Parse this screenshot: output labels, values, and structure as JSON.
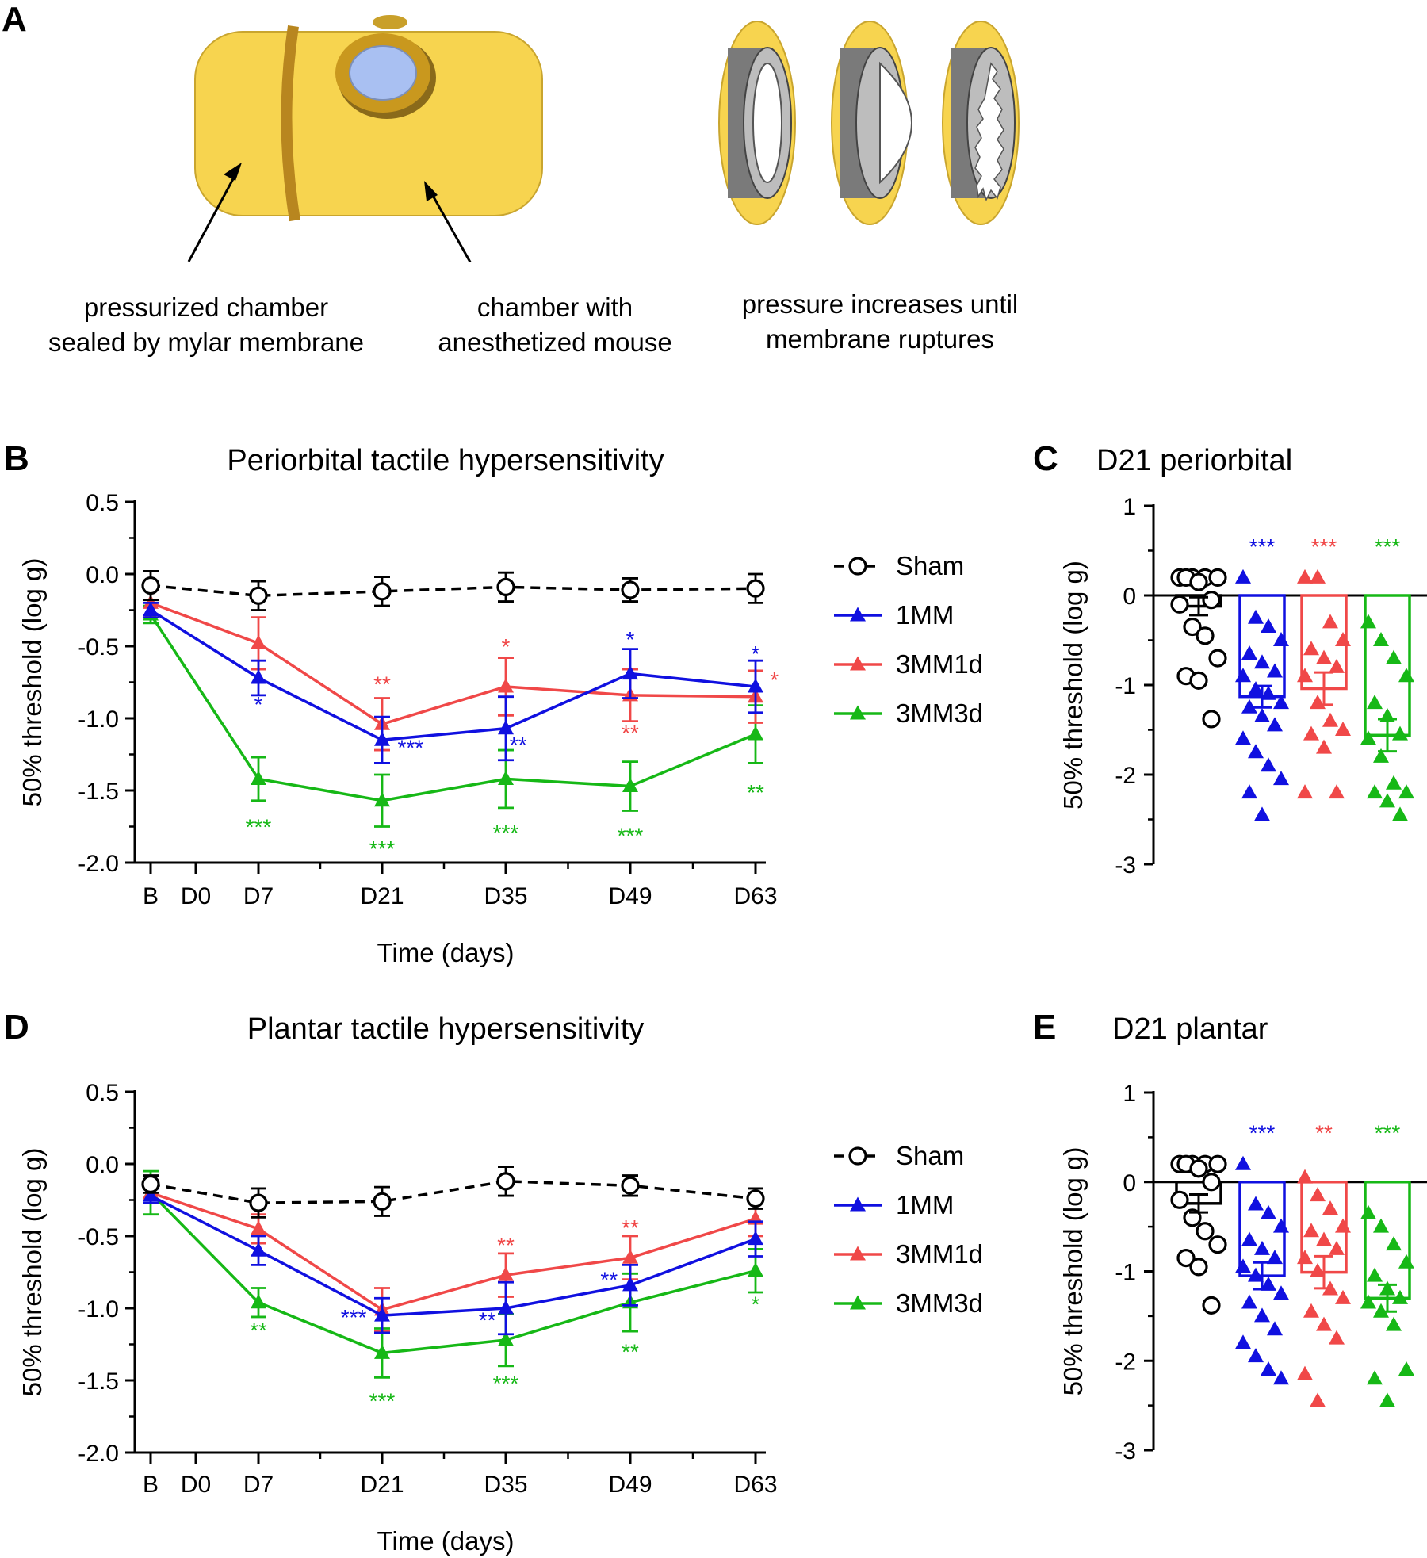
{
  "panel_a": {
    "letter": "A",
    "caption_left": [
      "pressurized chamber",
      "sealed by mylar membrane"
    ],
    "caption_mid": [
      "chamber with",
      "anesthetized mouse"
    ],
    "caption_right": [
      "pressure increases until",
      "membrane ruptures"
    ],
    "colors": {
      "chamber": "#F7D44F",
      "band": "#B8861F",
      "window": "#A9C0F2"
    }
  },
  "colors": {
    "Sham": "#000000",
    "1MM": "#1010E0",
    "3MM1d": "#F04848",
    "3MM3d": "#16B816"
  },
  "chart_data": [
    {
      "id": "B",
      "type": "line",
      "title": "Periorbital tactile hypersensitivity",
      "xlabel": "Time (days)",
      "ylabel": "50% threshold (log g)",
      "categories": [
        "B",
        "D0",
        "D7",
        "D21",
        "D35",
        "D49",
        "D63"
      ],
      "x": [
        0,
        1,
        2,
        3,
        4,
        5,
        6
      ],
      "ylim": [
        -2.0,
        0.5
      ],
      "yticks": [
        "0.5",
        "0.0",
        "-0.5",
        "-1.0",
        "-1.5",
        "-2.0"
      ],
      "ytick_values": [
        0.5,
        0.0,
        -0.5,
        -1.0,
        -1.5,
        -2.0
      ],
      "legend_position": "right",
      "series": [
        {
          "name": "Sham",
          "x": [
            0,
            2,
            3,
            4,
            5,
            6
          ],
          "values": [
            -0.08,
            -0.15,
            -0.12,
            -0.09,
            -0.11,
            -0.1
          ],
          "err": [
            0.1,
            0.1,
            0.1,
            0.1,
            0.08,
            0.1
          ]
        },
        {
          "name": "1MM",
          "x": [
            0,
            2,
            3,
            4,
            5,
            6
          ],
          "values": [
            -0.25,
            -0.72,
            -1.15,
            -1.07,
            -0.69,
            -0.78
          ],
          "err": [
            0.05,
            0.12,
            0.16,
            0.22,
            0.17,
            0.18
          ]
        },
        {
          "name": "3MM1d",
          "x": [
            0,
            2,
            3,
            4,
            5,
            6
          ],
          "values": [
            -0.2,
            -0.48,
            -1.04,
            -0.78,
            -0.84,
            -0.85
          ],
          "err": [
            0.1,
            0.18,
            0.18,
            0.2,
            0.18,
            0.18
          ]
        },
        {
          "name": "3MM3d",
          "x": [
            0,
            2,
            3,
            4,
            5,
            6
          ],
          "values": [
            -0.28,
            -1.42,
            -1.57,
            -1.42,
            -1.47,
            -1.11
          ],
          "err": [
            0.06,
            0.15,
            0.18,
            0.2,
            0.17,
            0.2
          ]
        }
      ],
      "annotations": [
        {
          "text": "*",
          "series": "1MM",
          "x": 2,
          "y": -0.9
        },
        {
          "text": "***",
          "series": "3MM3d",
          "x": 2,
          "y": -1.75
        },
        {
          "text": "**",
          "series": "3MM1d",
          "x": 3,
          "y": -0.76
        },
        {
          "text": "***",
          "series": "1MM",
          "x": 3.23,
          "y": -1.2
        },
        {
          "text": "***",
          "series": "3MM3d",
          "x": 3,
          "y": -1.9
        },
        {
          "text": "*",
          "series": "3MM1d",
          "x": 4,
          "y": -0.5
        },
        {
          "text": "**",
          "series": "1MM",
          "x": 4.1,
          "y": -1.18
        },
        {
          "text": "***",
          "series": "3MM3d",
          "x": 4,
          "y": -1.79
        },
        {
          "text": "*",
          "series": "1MM",
          "x": 5,
          "y": -0.45
        },
        {
          "text": "**",
          "series": "3MM1d",
          "x": 5,
          "y": -1.1
        },
        {
          "text": "***",
          "series": "3MM3d",
          "x": 5,
          "y": -1.81
        },
        {
          "text": "*",
          "series": "1MM",
          "x": 6,
          "y": -0.55
        },
        {
          "text": "*",
          "series": "3MM1d",
          "x": 6.15,
          "y": -0.73
        },
        {
          "text": "**",
          "series": "3MM3d",
          "x": 6,
          "y": -1.51
        }
      ]
    },
    {
      "id": "C",
      "type": "bar",
      "title": "D21 periorbital",
      "ylabel": "50% threshold (log g)",
      "categories": [
        "Sham",
        "1MM",
        "3MM1d",
        "3MM3d"
      ],
      "ylim": [
        -3,
        1
      ],
      "yticks": [
        "1",
        "0",
        "-1",
        "-2",
        "-3"
      ],
      "ytick_values": [
        1,
        0,
        -1,
        -2,
        -3
      ],
      "values": [
        -0.12,
        -1.13,
        -1.04,
        -1.56
      ],
      "err": [
        0.1,
        0.12,
        0.18,
        0.18
      ],
      "significance": [
        "",
        "***",
        "***",
        "***"
      ],
      "points": [
        [
          0.2,
          0.2,
          0.2,
          0.2,
          0.2,
          0.15,
          -0.05,
          -0.1,
          -0.35,
          -0.45,
          -0.7,
          -0.9,
          -0.95,
          -1.38
        ],
        [
          0.2,
          -0.25,
          -0.35,
          -0.5,
          -0.65,
          -0.75,
          -0.85,
          -0.9,
          -1.05,
          -1.1,
          -1.2,
          -1.25,
          -1.35,
          -1.45,
          -1.6,
          -1.75,
          -1.9,
          -2.05,
          -2.2,
          -2.45
        ],
        [
          0.2,
          0.2,
          -0.3,
          -0.5,
          -0.6,
          -0.7,
          -0.8,
          -0.9,
          -1.2,
          -1.4,
          -1.5,
          -1.55,
          -1.7,
          -2.2,
          -2.2
        ],
        [
          -0.3,
          -0.5,
          -0.7,
          -0.9,
          -1.2,
          -1.35,
          -1.55,
          -1.6,
          -1.8,
          -2.1,
          -2.2,
          -2.2,
          -2.3,
          -2.45
        ]
      ]
    },
    {
      "id": "D",
      "type": "line",
      "title": "Plantar tactile hypersensitivity",
      "xlabel": "Time (days)",
      "ylabel": "50% threshold (log g)",
      "categories": [
        "B",
        "D0",
        "D7",
        "D21",
        "D35",
        "D49",
        "D63"
      ],
      "x": [
        0,
        1,
        2,
        3,
        4,
        5,
        6
      ],
      "ylim": [
        -2.0,
        0.5
      ],
      "yticks": [
        "0.5",
        "0.0",
        "-0.5",
        "-1.0",
        "-1.5",
        "-2.0"
      ],
      "ytick_values": [
        0.5,
        0.0,
        -0.5,
        -1.0,
        -1.5,
        -2.0
      ],
      "legend_position": "right",
      "series": [
        {
          "name": "Sham",
          "x": [
            0,
            2,
            3,
            4,
            5,
            6
          ],
          "values": [
            -0.14,
            -0.27,
            -0.26,
            -0.12,
            -0.15,
            -0.24
          ],
          "err": [
            0.06,
            0.1,
            0.1,
            0.1,
            0.07,
            0.07
          ]
        },
        {
          "name": "1MM",
          "x": [
            0,
            2,
            3,
            4,
            5,
            6
          ],
          "values": [
            -0.22,
            -0.6,
            -1.05,
            -1.0,
            -0.84,
            -0.52
          ],
          "err": [
            0.05,
            0.1,
            0.12,
            0.18,
            0.14,
            0.12
          ]
        },
        {
          "name": "3MM1d",
          "x": [
            0,
            2,
            3,
            4,
            5,
            6
          ],
          "values": [
            -0.2,
            -0.45,
            -1.01,
            -0.77,
            -0.65,
            -0.38
          ],
          "err": [
            0.05,
            0.1,
            0.15,
            0.15,
            0.15,
            0.12
          ]
        },
        {
          "name": "3MM3d",
          "x": [
            0,
            2,
            3,
            4,
            5,
            6
          ],
          "values": [
            -0.2,
            -0.96,
            -1.31,
            -1.22,
            -0.96,
            -0.74
          ],
          "err": [
            0.15,
            0.1,
            0.17,
            0.18,
            0.2,
            0.15
          ]
        }
      ],
      "annotations": [
        {
          "text": "**",
          "series": "3MM3d",
          "x": 2,
          "y": -1.15
        },
        {
          "text": "***",
          "series": "1MM",
          "x": 2.77,
          "y": -1.06
        },
        {
          "text": "***",
          "series": "3MM3d",
          "x": 3,
          "y": -1.64
        },
        {
          "text": "**",
          "series": "3MM1d",
          "x": 4,
          "y": -0.56
        },
        {
          "text": "**",
          "series": "1MM",
          "x": 3.85,
          "y": -1.08
        },
        {
          "text": "***",
          "series": "3MM3d",
          "x": 4,
          "y": -1.52
        },
        {
          "text": "**",
          "series": "3MM1d",
          "x": 5,
          "y": -0.44
        },
        {
          "text": "**",
          "series": "1MM",
          "x": 4.83,
          "y": -0.8
        },
        {
          "text": "**",
          "series": "3MM3d",
          "x": 5,
          "y": -1.3
        },
        {
          "text": "*",
          "series": "3MM3d",
          "x": 6,
          "y": -0.97
        }
      ]
    },
    {
      "id": "E",
      "type": "bar",
      "title": "D21 plantar",
      "ylabel": "50% threshold (log g)",
      "categories": [
        "Sham",
        "1MM",
        "3MM1d",
        "3MM3d"
      ],
      "ylim": [
        -3,
        1
      ],
      "yticks": [
        "1",
        "0",
        "-1",
        "-2",
        "-3"
      ],
      "ytick_values": [
        1,
        0,
        -1,
        -2,
        -3
      ],
      "values": [
        -0.24,
        -1.05,
        -1.01,
        -1.3
      ],
      "err": [
        0.1,
        0.15,
        0.18,
        0.15
      ],
      "significance": [
        "",
        "***",
        "**",
        "***"
      ],
      "points": [
        [
          0.2,
          0.2,
          0.2,
          0.2,
          0.2,
          0.15,
          0.0,
          -0.2,
          -0.4,
          -0.55,
          -0.7,
          -0.85,
          -0.95,
          -1.38
        ],
        [
          0.2,
          -0.25,
          -0.35,
          -0.5,
          -0.65,
          -0.75,
          -0.85,
          -0.95,
          -1.05,
          -1.15,
          -1.25,
          -1.35,
          -1.5,
          -1.65,
          -1.8,
          -1.95,
          -2.1,
          -2.2
        ],
        [
          0.05,
          -0.15,
          -0.3,
          -0.5,
          -0.55,
          -0.65,
          -0.75,
          -0.85,
          -1.0,
          -1.2,
          -1.3,
          -1.45,
          -1.6,
          -1.75,
          -2.15,
          -2.45
        ],
        [
          -0.35,
          -0.5,
          -0.7,
          -0.9,
          -1.05,
          -1.2,
          -1.3,
          -1.35,
          -1.45,
          -1.6,
          -2.1,
          -2.2,
          -2.45
        ]
      ]
    }
  ]
}
